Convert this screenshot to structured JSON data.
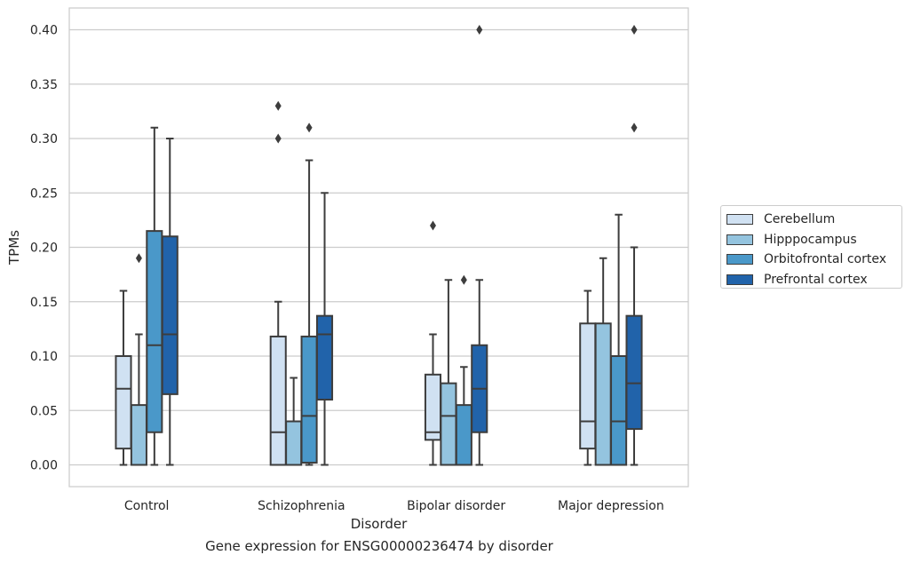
{
  "caption": "Gene expression for ENSG00000236474 by disorder",
  "chart_data": {
    "type": "box",
    "xlabel": "Disorder",
    "ylabel": "TPMs",
    "ylim": [
      -0.02,
      0.42
    ],
    "yticks": [
      0.0,
      0.05,
      0.1,
      0.15,
      0.2,
      0.25,
      0.3,
      0.35,
      0.4
    ],
    "ytick_labels": [
      "0.00",
      "0.05",
      "0.10",
      "0.15",
      "0.20",
      "0.25",
      "0.30",
      "0.35",
      "0.40"
    ],
    "grid": "horizontal",
    "legend_position": "right",
    "categories": [
      "Control",
      "Schizophrenia",
      "Bipolar disorder",
      "Major depression"
    ],
    "series": [
      {
        "name": "Cerebellum",
        "color": "#d0e1f2",
        "boxes": [
          {
            "whisker_low": 0.0,
            "q1": 0.015,
            "median": 0.07,
            "q3": 0.1,
            "whisker_high": 0.16,
            "outliers": []
          },
          {
            "whisker_low": 0.0,
            "q1": 0.0,
            "median": 0.03,
            "q3": 0.118,
            "whisker_high": 0.15,
            "outliers": [
              0.3,
              0.33
            ]
          },
          {
            "whisker_low": 0.0,
            "q1": 0.023,
            "median": 0.03,
            "q3": 0.083,
            "whisker_high": 0.12,
            "outliers": [
              0.22
            ]
          },
          {
            "whisker_low": 0.0,
            "q1": 0.015,
            "median": 0.04,
            "q3": 0.13,
            "whisker_high": 0.16,
            "outliers": []
          }
        ]
      },
      {
        "name": "Hipppocampus",
        "color": "#94c4df",
        "boxes": [
          {
            "whisker_low": 0.0,
            "q1": 0.0,
            "median": 0.0,
            "q3": 0.055,
            "whisker_high": 0.12,
            "outliers": [
              0.19
            ]
          },
          {
            "whisker_low": 0.0,
            "q1": 0.0,
            "median": 0.0,
            "q3": 0.04,
            "whisker_high": 0.08,
            "outliers": []
          },
          {
            "whisker_low": 0.0,
            "q1": 0.0,
            "median": 0.045,
            "q3": 0.075,
            "whisker_high": 0.17,
            "outliers": []
          },
          {
            "whisker_low": 0.0,
            "q1": 0.0,
            "median": 0.0,
            "q3": 0.13,
            "whisker_high": 0.19,
            "outliers": []
          }
        ]
      },
      {
        "name": "Orbitofrontal cortex",
        "color": "#4a98c9",
        "boxes": [
          {
            "whisker_low": 0.0,
            "q1": 0.03,
            "median": 0.11,
            "q3": 0.215,
            "whisker_high": 0.31,
            "outliers": []
          },
          {
            "whisker_low": 0.0,
            "q1": 0.002,
            "median": 0.045,
            "q3": 0.118,
            "whisker_high": 0.28,
            "outliers": [
              0.31
            ]
          },
          {
            "whisker_low": 0.0,
            "q1": 0.0,
            "median": 0.0,
            "q3": 0.055,
            "whisker_high": 0.09,
            "outliers": [
              0.17
            ]
          },
          {
            "whisker_low": 0.0,
            "q1": 0.0,
            "median": 0.04,
            "q3": 0.1,
            "whisker_high": 0.23,
            "outliers": []
          }
        ]
      },
      {
        "name": "Prefrontal cortex",
        "color": "#2163aa",
        "boxes": [
          {
            "whisker_low": 0.0,
            "q1": 0.065,
            "median": 0.12,
            "q3": 0.21,
            "whisker_high": 0.3,
            "outliers": []
          },
          {
            "whisker_low": 0.0,
            "q1": 0.06,
            "median": 0.12,
            "q3": 0.137,
            "whisker_high": 0.25,
            "outliers": []
          },
          {
            "whisker_low": 0.0,
            "q1": 0.03,
            "median": 0.07,
            "q3": 0.11,
            "whisker_high": 0.17,
            "outliers": [
              0.4
            ]
          },
          {
            "whisker_low": 0.0,
            "q1": 0.033,
            "median": 0.075,
            "q3": 0.137,
            "whisker_high": 0.2,
            "outliers": [
              0.31,
              0.4
            ]
          }
        ]
      }
    ]
  }
}
